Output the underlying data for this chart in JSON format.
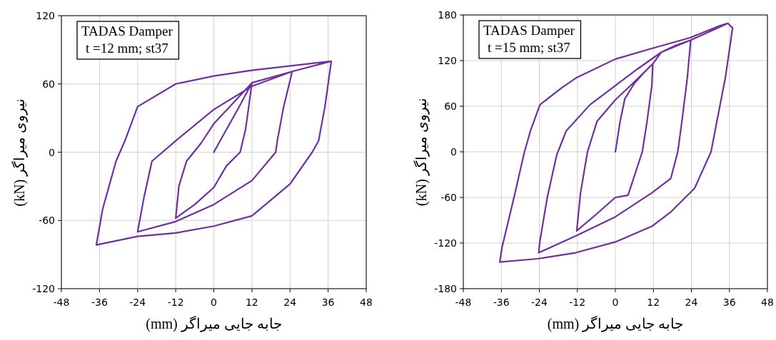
{
  "chart_data": [
    {
      "type": "line",
      "xlabel": "جابه جایی میراگر (mm)",
      "ylabel": "نیروی میراگر (kN)",
      "annotations": [
        "TADAS Damper\nt =12 mm; st37"
      ],
      "xlim": [
        -48,
        48
      ],
      "ylim": [
        -120,
        120
      ],
      "xticks": [
        -48,
        -36,
        -24,
        -12,
        0,
        12,
        24,
        36,
        48
      ],
      "yticks": [
        -120,
        -60,
        0,
        60,
        120
      ],
      "grid": true,
      "series": [
        {
          "color": "#7030a0",
          "x": [
            0,
            4,
            8,
            12,
            11,
            10,
            8.3,
            4,
            0,
            -6,
            -12,
            -11,
            -8.6,
            -4,
            0,
            6,
            12,
            24.7,
            22,
            20,
            19.5,
            12,
            0,
            -12,
            -24,
            -22,
            -19.5,
            -12,
            0,
            12,
            24.7,
            37,
            35,
            33,
            31,
            24,
            12,
            0,
            -12,
            -24,
            -37,
            -35,
            -30.8,
            -28,
            -24,
            -12,
            0,
            12,
            24.7,
            37
          ],
          "values": [
            0,
            20,
            40,
            61,
            40,
            20,
            0,
            -12,
            -31,
            -46,
            -58,
            -30,
            -8,
            8,
            25,
            43,
            61,
            71,
            40,
            10,
            0,
            -25,
            -46,
            -61,
            -70,
            -40,
            -8,
            10,
            37.5,
            58,
            71,
            80,
            40,
            10,
            0,
            -28,
            -56,
            -65,
            -71,
            -74,
            -81.5,
            -50,
            -8,
            10,
            40,
            60,
            67,
            72,
            76,
            80
          ]
        }
      ]
    },
    {
      "type": "line",
      "xlabel": "جابه جایی میراگر (mm)",
      "ylabel": "نیروی میراگر (kN)",
      "annotations": [
        "TADAS Damper\nt =15 mm; st37"
      ],
      "xlim": [
        -48,
        48
      ],
      "ylim": [
        -180,
        180
      ],
      "xticks": [
        -48,
        -36,
        -24,
        -12,
        0,
        12,
        24,
        36,
        48
      ],
      "yticks": [
        -180,
        -120,
        -60,
        0,
        60,
        120,
        180
      ],
      "grid": true,
      "series": [
        {
          "color": "#7030a0",
          "x": [
            0,
            1.5,
            3,
            6,
            9,
            11.8,
            11.5,
            10,
            8.5,
            4,
            0,
            -6,
            -12.2,
            -11,
            -8.8,
            -5.8,
            0,
            5.5,
            11.8,
            14.5,
            19,
            23.8,
            22.7,
            21,
            19.7,
            17.5,
            11.5,
            0,
            -12.5,
            -24.2,
            -23.8,
            -21.5,
            -18.5,
            -15.5,
            -8,
            0,
            7,
            14.5,
            23.8,
            35.5,
            37,
            34.7,
            32.5,
            30.2,
            25,
            17.5,
            11.5,
            0,
            -12.5,
            -24.5,
            -36.5,
            -35.8,
            -32,
            -28.7,
            -26.8,
            -23.8,
            -17,
            -12.5,
            0,
            11.5,
            23.5,
            33,
            35.5
          ],
          "values": [
            0,
            40,
            70,
            90,
            104,
            115.7,
            87,
            40,
            0,
            -57,
            -60,
            -82,
            -104,
            -54,
            0,
            40,
            68.5,
            90,
            115.7,
            131,
            140,
            147,
            97,
            40,
            0,
            -35,
            -54,
            -85.5,
            -110.6,
            -132.7,
            -117,
            -60,
            -4,
            27.7,
            62,
            87,
            109,
            131,
            147,
            169,
            163,
            97,
            50,
            0,
            -48,
            -79,
            -98,
            -118.5,
            -132.7,
            -140.6,
            -145,
            -126,
            -60,
            0,
            27.7,
            62,
            84,
            97,
            122,
            136,
            150,
            166,
            169
          ]
        }
      ]
    }
  ]
}
